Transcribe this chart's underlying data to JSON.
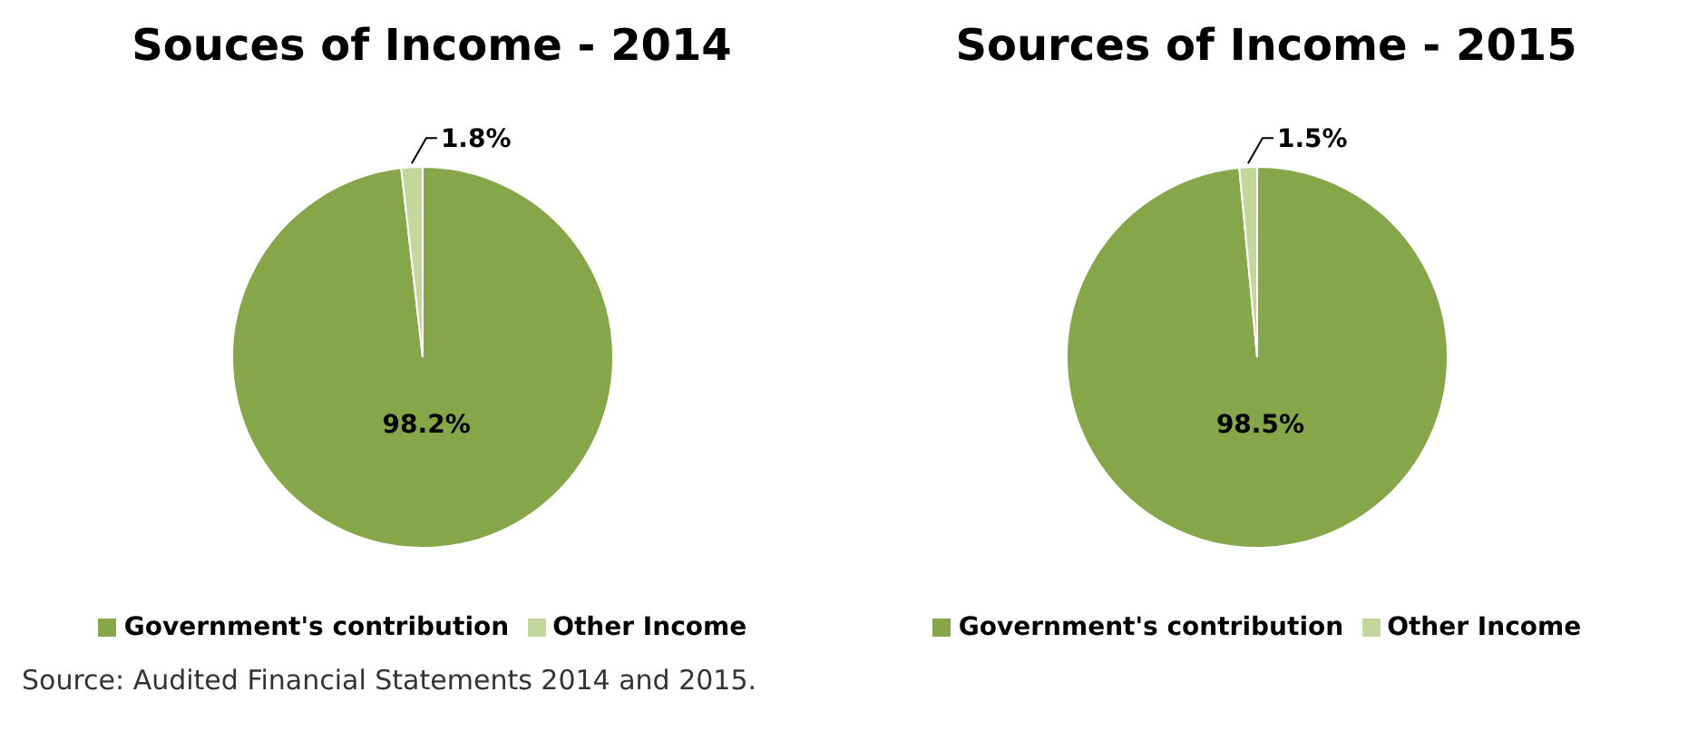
{
  "chart_data": [
    {
      "type": "pie",
      "title": "Souces of Income - 2014",
      "categories": [
        "Government's contribution",
        "Other Income"
      ],
      "values": [
        98.2,
        1.8
      ],
      "colors": [
        "#86a64a",
        "#c3d69b"
      ],
      "value_labels": [
        "98.2%",
        "1.8%"
      ],
      "legend": "bottom",
      "annotations": [
        "Source: Audited Financial Statements 2014 and 2015."
      ]
    },
    {
      "type": "pie",
      "title": "Sources of Income - 2015",
      "categories": [
        "Government's contribution",
        "Other Income"
      ],
      "values": [
        98.5,
        1.5
      ],
      "colors": [
        "#86a64a",
        "#c3d69b"
      ],
      "value_labels": [
        "98.5%",
        "1.5%"
      ],
      "legend": "bottom"
    }
  ]
}
